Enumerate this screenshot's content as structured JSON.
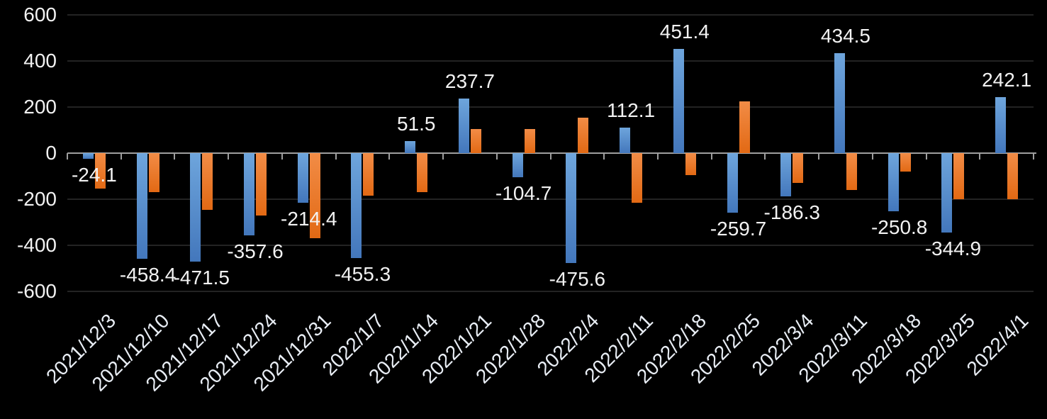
{
  "chart_data": {
    "type": "bar",
    "title": "",
    "legend": "none",
    "grid": true,
    "background": "#000000",
    "axis_color": "#9e9e9e",
    "gridline_color": "#232323",
    "value_label_color": "#f2f2f2",
    "ytick_label_color": "#f2f2f2",
    "xtick_label_color": "#e9eef5",
    "ylim": [
      -600,
      600
    ],
    "yticks": [
      600,
      400,
      200,
      0,
      -200,
      -400,
      -600
    ],
    "categories": [
      "2021/12/3",
      "2021/12/10",
      "2021/12/17",
      "2021/12/24",
      "2021/12/31",
      "2022/1/7",
      "2022/1/14",
      "2022/1/21",
      "2022/1/28",
      "2022/2/4",
      "2022/2/11",
      "2022/2/18",
      "2022/2/25",
      "2022/3/4",
      "2022/3/11",
      "2022/3/18",
      "2022/3/25",
      "2022/4/1"
    ],
    "series": [
      {
        "name": "blue-series",
        "color_top": "#6ea5dc",
        "color_bottom": "#4377bc",
        "values": [
          -24.1,
          -458.4,
          -471.5,
          -357.6,
          -214.4,
          -455.3,
          51.5,
          237.7,
          -104.7,
          -475.6,
          112.1,
          451.4,
          -259.7,
          -186.3,
          434.5,
          -250.8,
          -344.9,
          242.1
        ],
        "data_labels": [
          "-24.1",
          "-458.4",
          "-471.5",
          "-357.6",
          "-214.4",
          "-455.3",
          "51.5",
          "237.7",
          "-104.7",
          "-475.6",
          "112.1",
          "451.4",
          "-259.7",
          "-186.3",
          "434.5",
          "-250.8",
          "-344.9",
          "242.1"
        ],
        "labels_visible": true
      },
      {
        "name": "orange-series",
        "color_top": "#f28c46",
        "color_bottom": "#e26914",
        "values": [
          -155,
          -170,
          -245,
          -270,
          -370,
          -185,
          -170,
          105,
          105,
          155,
          -215,
          -95,
          225,
          -130,
          -160,
          -80,
          -200,
          -200
        ],
        "labels_visible": false
      }
    ]
  }
}
